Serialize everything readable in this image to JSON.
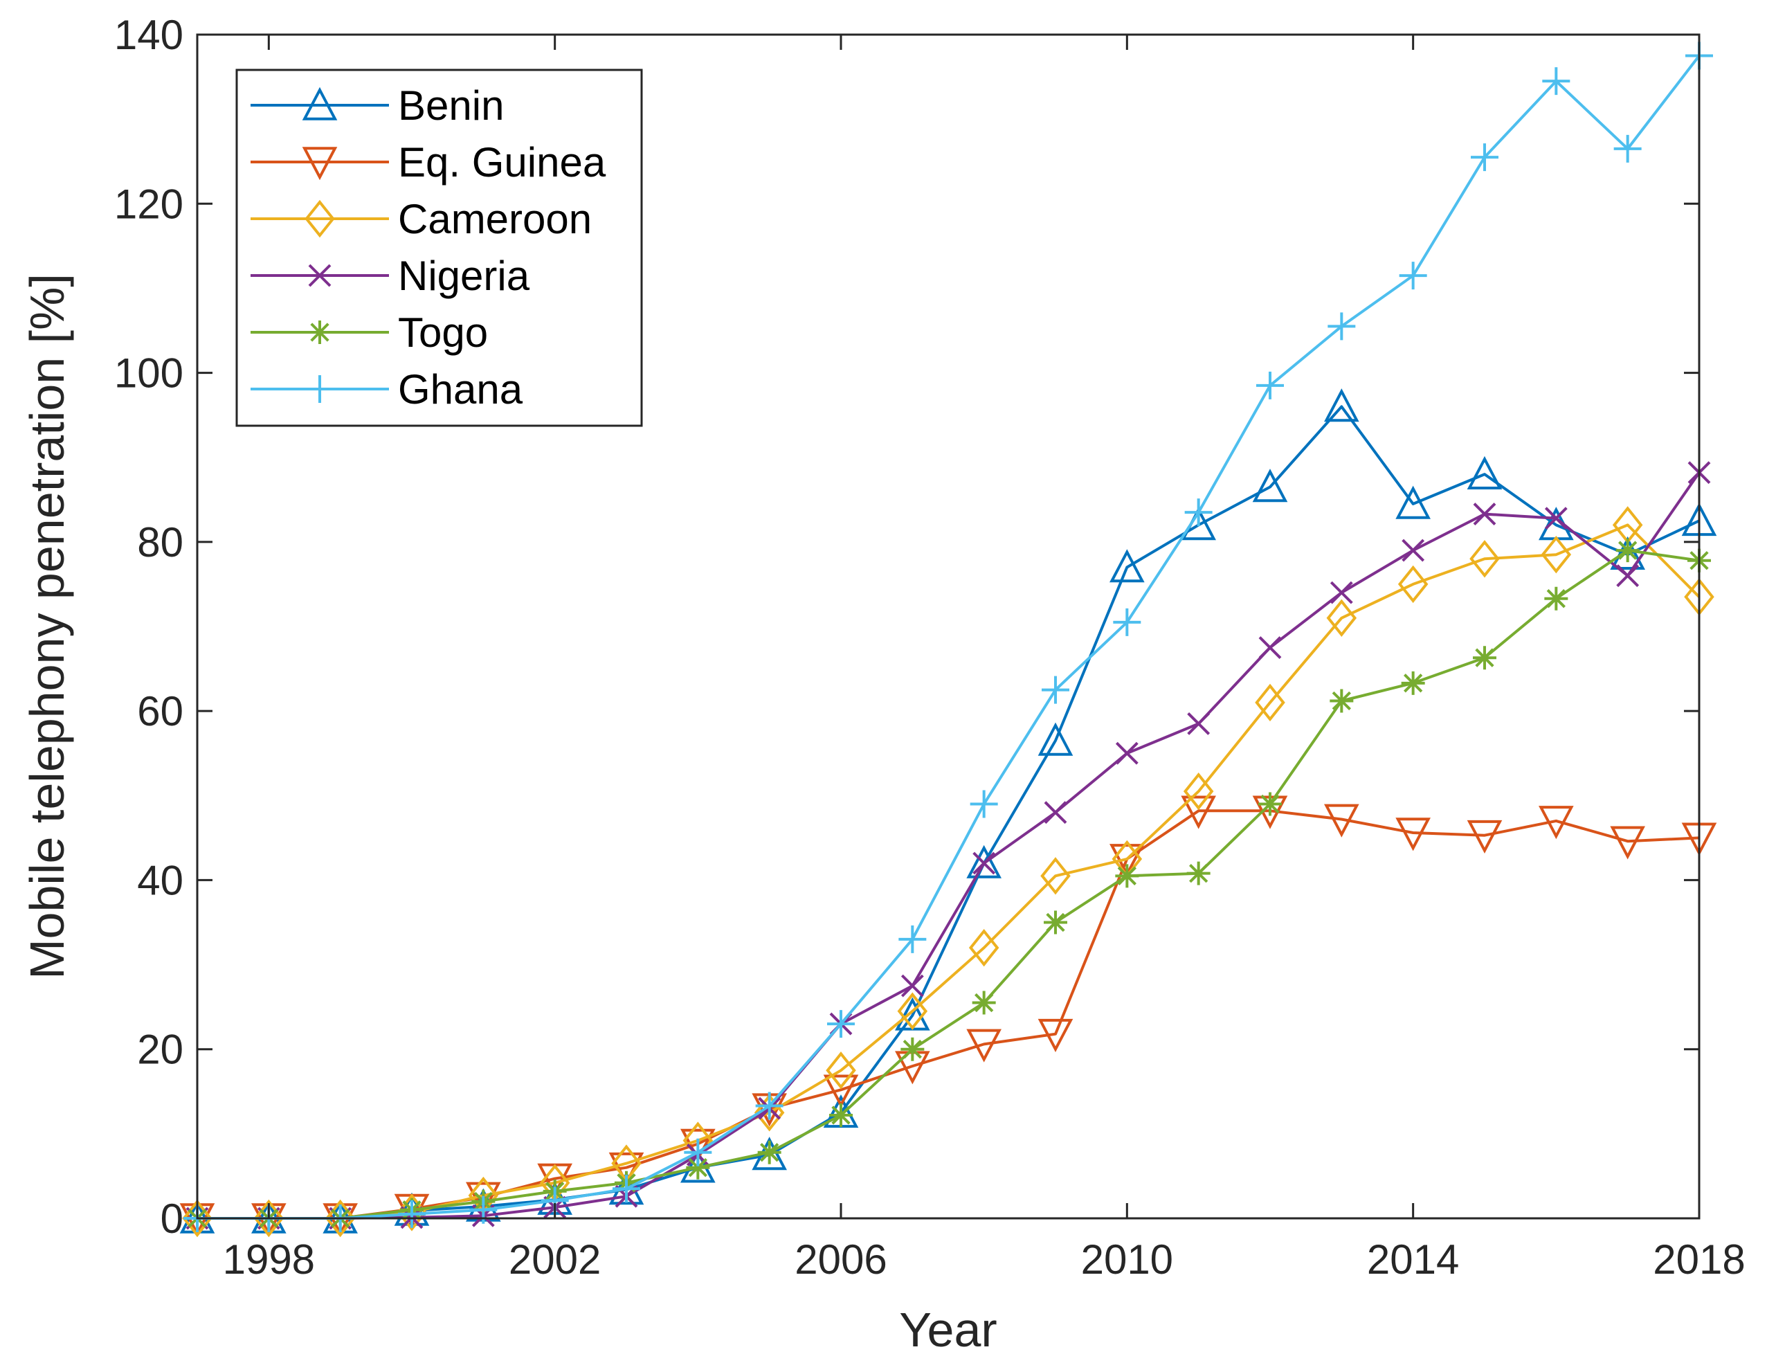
{
  "chart_data": {
    "type": "line",
    "title": "",
    "xlabel": "Year",
    "ylabel": "Mobile telephony penetration [%]",
    "xlim": [
      1997,
      2018
    ],
    "ylim": [
      0,
      140
    ],
    "xticks": [
      1998,
      2002,
      2006,
      2010,
      2014,
      2018
    ],
    "yticks": [
      0,
      20,
      40,
      60,
      80,
      100,
      120,
      140
    ],
    "grid": false,
    "legend_location": "top-left",
    "x": [
      1997,
      1998,
      1999,
      2000,
      2001,
      2002,
      2003,
      2004,
      2005,
      2006,
      2007,
      2008,
      2009,
      2010,
      2011,
      2012,
      2013,
      2014,
      2015,
      2016,
      2017,
      2018
    ],
    "series": [
      {
        "name": "Benin",
        "color": "#0072BD",
        "marker": "triangle-up",
        "values": [
          0,
          0,
          0,
          0.9,
          1.4,
          2.2,
          3.4,
          6.0,
          7.5,
          12.5,
          24,
          42,
          56.5,
          77,
          82,
          86.5,
          96,
          84.5,
          88,
          82,
          78.5,
          82.5
        ]
      },
      {
        "name": "Eq. Guinea",
        "color": "#D95319",
        "marker": "triangle-down",
        "values": [
          0,
          0,
          0,
          1.1,
          2.5,
          4.7,
          6.0,
          8.8,
          13.0,
          15.2,
          18.0,
          20.6,
          21.8,
          42.5,
          48.2,
          48.2,
          47.2,
          45.6,
          45.3,
          47.0,
          44.6,
          45.0
        ]
      },
      {
        "name": "Cameroon",
        "color": "#EDB120",
        "marker": "diamond",
        "values": [
          0,
          0,
          0,
          0.7,
          2.7,
          4.2,
          6.5,
          9.2,
          12.5,
          17.5,
          24.5,
          32,
          40.5,
          42.5,
          50.5,
          61,
          71,
          75,
          78,
          78.5,
          82,
          73.5
        ]
      },
      {
        "name": "Nigeria",
        "color": "#7E2F8E",
        "marker": "x",
        "values": [
          0,
          0,
          0,
          0.1,
          0.3,
          1.3,
          2.6,
          7.5,
          13.0,
          23,
          27.5,
          42,
          48,
          55,
          58.5,
          67.5,
          74,
          79,
          83.3,
          82.8,
          76,
          88.2
        ]
      },
      {
        "name": "Togo",
        "color": "#77AC30",
        "marker": "asterisk",
        "values": [
          0,
          0,
          0,
          1.0,
          2.0,
          3.2,
          4.2,
          6.0,
          7.8,
          12.2,
          20.0,
          25.5,
          35.0,
          40.5,
          40.8,
          49,
          61.2,
          63.3,
          66.3,
          73.3,
          79,
          77.8
        ]
      },
      {
        "name": "Ghana",
        "color": "#4DBEEE",
        "marker": "plus",
        "values": [
          0,
          0,
          0,
          0.5,
          1.0,
          2.1,
          3.5,
          7.8,
          13.3,
          23.0,
          33.0,
          49.0,
          62.5,
          70.5,
          83.5,
          98.5,
          105.5,
          111.5,
          125.5,
          134.5,
          126.5,
          137.5
        ]
      }
    ]
  }
}
